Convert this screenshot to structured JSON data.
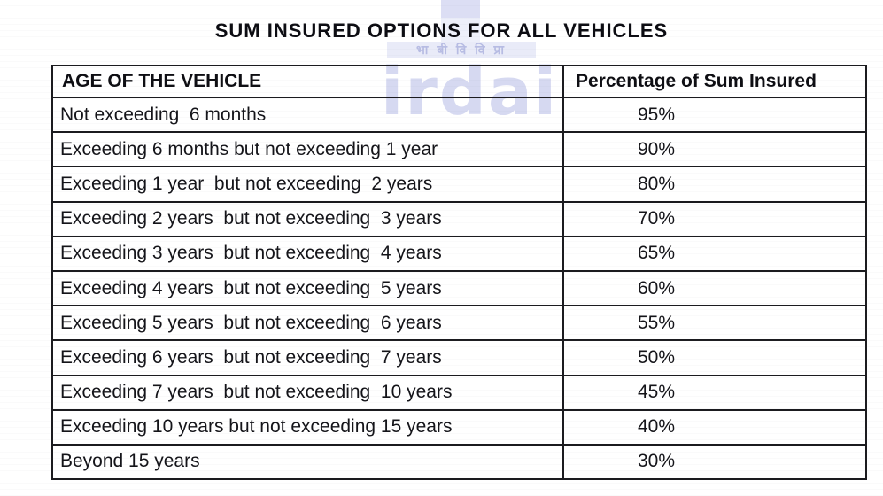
{
  "page": {
    "title": "SUM INSURED OPTIONS FOR ALL VEHICLES"
  },
  "watermark": {
    "logo_text": "irdai",
    "hindi_band_text": "भा बी वि वि प्रा",
    "logo_color": "#d6d9f1",
    "band_color": "#e9ebf8"
  },
  "table": {
    "columns": [
      {
        "label": "AGE OF THE VEHICLE"
      },
      {
        "label": "Percentage of Sum Insured"
      }
    ],
    "rows": [
      {
        "age": "Not exceeding  6 months",
        "pct": "95%"
      },
      {
        "age": "Exceeding 6 months but not exceeding 1 year",
        "pct": "90%"
      },
      {
        "age": "Exceeding 1 year  but not exceeding  2 years",
        "pct": "80%"
      },
      {
        "age": "Exceeding 2 years  but not exceeding  3 years",
        "pct": "70%"
      },
      {
        "age": "Exceeding 3 years  but not exceeding  4 years",
        "pct": "65%"
      },
      {
        "age": "Exceeding 4 years  but not exceeding  5 years",
        "pct": "60%"
      },
      {
        "age": "Exceeding 5 years  but not exceeding  6 years",
        "pct": "55%"
      },
      {
        "age": "Exceeding 6 years  but not exceeding  7 years",
        "pct": "50%"
      },
      {
        "age": "Exceeding 7 years  but not exceeding  10 years",
        "pct": "45%"
      },
      {
        "age": "Exceeding 10 years but not exceeding 15 years",
        "pct": "40%"
      },
      {
        "age": "Beyond 15 years",
        "pct": "30%"
      }
    ]
  },
  "colors": {
    "border": "#1b1b1f",
    "text": "#141419",
    "watermark_lavender": "#d6d9f1",
    "background": "#ffffff"
  }
}
